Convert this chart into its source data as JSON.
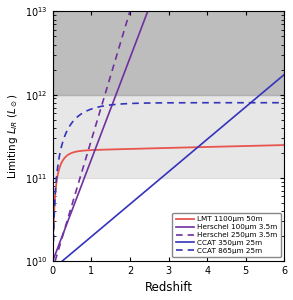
{
  "title": "",
  "xlabel": "Redshift",
  "ylabel": "Limiting $L_{IR}$ ($L_\\odot$)",
  "xlim": [
    0,
    6
  ],
  "ylim_log": [
    10,
    13
  ],
  "background_color": "#ffffff",
  "gray_dark_alpha": 0.55,
  "gray_light_alpha": 0.35,
  "legend_entries": [
    {
      "label": "LMT 1100μm 50m",
      "color": "#e8554e",
      "linestyle": "solid"
    },
    {
      "label": "Herschel 100μm 3.5m",
      "color": "#7030A0",
      "linestyle": "solid"
    },
    {
      "label": "Herschel 250μm 3.5m",
      "color": "#7030A0",
      "linestyle": "dashed"
    },
    {
      "label": "CCAT 350μm 25m",
      "color": "#3333bb",
      "linestyle": "solid"
    },
    {
      "label": "CCAT 865μm 25m",
      "color": "#3333bb",
      "linestyle": "dashed"
    }
  ]
}
